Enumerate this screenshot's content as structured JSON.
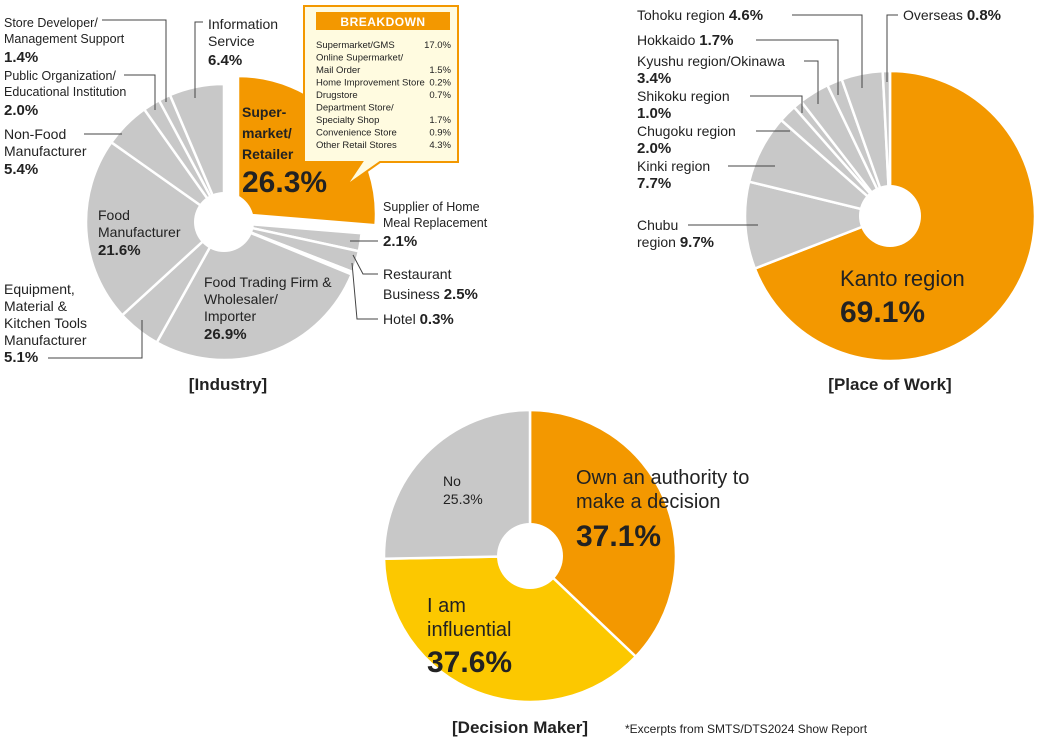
{
  "chart_data": [
    {
      "type": "pie",
      "title": "[Industry]",
      "slices": [
        {
          "label": "Supermarket/Retailer",
          "value": 26.3,
          "display": "26.3%",
          "color": "#f39800",
          "highlight": true
        },
        {
          "label": "Supplier of Home Meal Replacement",
          "value": 2.1,
          "display": "2.1%",
          "color": "#c8c8c8"
        },
        {
          "label": "Restaurant Business",
          "value": 2.5,
          "display": "2.5%",
          "color": "#c8c8c8"
        },
        {
          "label": "Hotel",
          "value": 0.3,
          "display": "0.3%",
          "color": "#c8c8c8"
        },
        {
          "label": "Food Trading Firm & Wholesaler/Importer",
          "value": 26.9,
          "display": "26.9%",
          "color": "#c8c8c8"
        },
        {
          "label": "Equipment, Material & Kitchen Tools Manufacturer",
          "value": 5.1,
          "display": "5.1%",
          "color": "#c8c8c8"
        },
        {
          "label": "Food Manufacturer",
          "value": 21.6,
          "display": "21.6%",
          "color": "#c8c8c8"
        },
        {
          "label": "Non-Food Manufacturer",
          "value": 5.4,
          "display": "5.4%",
          "color": "#c8c8c8"
        },
        {
          "label": "Public Organization/Educational Institution",
          "value": 2.0,
          "display": "2.0%",
          "color": "#c8c8c8"
        },
        {
          "label": "Store Developer/Management Support",
          "value": 1.4,
          "display": "1.4%",
          "color": "#c8c8c8"
        },
        {
          "label": "Information Service",
          "value": 6.4,
          "display": "6.4%",
          "color": "#c8c8c8"
        }
      ],
      "breakdown": {
        "title": "BREAKDOWN",
        "items": [
          {
            "label": "Supermarket/GMS",
            "value": "17.0%"
          },
          {
            "label": "Online Supermarket/\nMail Order",
            "value": "1.5%"
          },
          {
            "label": "Home Improvement Store",
            "value": "0.2%"
          },
          {
            "label": "Drugstore",
            "value": "0.7%"
          },
          {
            "label": "Department Store/\nSpecialty Shop",
            "value": "1.7%"
          },
          {
            "label": "Convenience Store",
            "value": "0.9%"
          },
          {
            "label": "Other Retail Stores",
            "value": "4.3%"
          }
        ]
      }
    },
    {
      "type": "pie",
      "title": "[Place of Work]",
      "slices": [
        {
          "label": "Kanto region",
          "value": 69.1,
          "display": "69.1%",
          "color": "#f39800",
          "highlight": true
        },
        {
          "label": "Chubu region",
          "value": 9.7,
          "display": "9.7%",
          "color": "#c8c8c8"
        },
        {
          "label": "Kinki region",
          "value": 7.7,
          "display": "7.7%",
          "color": "#c8c8c8"
        },
        {
          "label": "Chugoku region",
          "value": 2.0,
          "display": "2.0%",
          "color": "#c8c8c8"
        },
        {
          "label": "Shikoku region",
          "value": 1.0,
          "display": "1.0%",
          "color": "#c8c8c8"
        },
        {
          "label": "Kyushu region/Okinawa",
          "value": 3.4,
          "display": "3.4%",
          "color": "#c8c8c8"
        },
        {
          "label": "Hokkaido",
          "value": 1.7,
          "display": "1.7%",
          "color": "#c8c8c8"
        },
        {
          "label": "Tohoku region",
          "value": 4.6,
          "display": "4.6%",
          "color": "#c8c8c8"
        },
        {
          "label": "Overseas",
          "value": 0.8,
          "display": "0.8%",
          "color": "#c8c8c8"
        }
      ]
    },
    {
      "type": "pie",
      "title": "[Decision Maker]",
      "slices": [
        {
          "label": "Own an authority to make a decision",
          "value": 37.1,
          "display": "37.1%",
          "color": "#f39800"
        },
        {
          "label": "I am influential",
          "value": 37.6,
          "display": "37.6%",
          "color": "#fcc800"
        },
        {
          "label": "No",
          "value": 25.3,
          "display": "25.3%",
          "color": "#c8c8c8"
        }
      ]
    }
  ],
  "footnote": "*Excerpts from SMTS/DTS2024 Show Report"
}
